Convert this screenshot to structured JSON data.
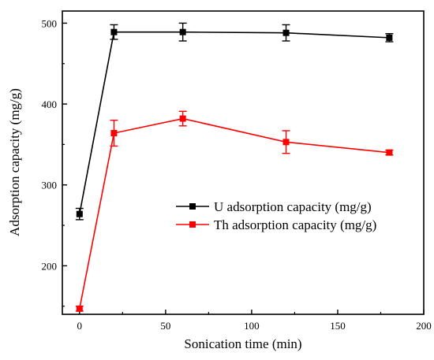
{
  "chart_data": {
    "type": "line",
    "xlabel": "Sonication time (min)",
    "ylabel": "Adsorption capacity (mg/g)",
    "xlim": [
      -10,
      200
    ],
    "ylim": [
      140,
      515
    ],
    "xticks": [
      0,
      50,
      100,
      150,
      200
    ],
    "yticks": [
      200,
      300,
      400,
      500
    ],
    "x_tick_labels": [
      "0",
      "50",
      "100",
      "150",
      "200"
    ],
    "y_tick_labels": [
      "200",
      "300",
      "400",
      "500"
    ],
    "legend_position": "center-right",
    "x": [
      0,
      20,
      60,
      120,
      180
    ],
    "series": [
      {
        "name": "U adsorption capacity (mg/g)",
        "color": "#000000",
        "marker": "square",
        "values": [
          264,
          489,
          489,
          488,
          482
        ],
        "errors": [
          7,
          9,
          11,
          10,
          5
        ]
      },
      {
        "name": "Th adsorption capacity (mg/g)",
        "color": "#ff0000",
        "marker": "square",
        "values": [
          147,
          364,
          382,
          353,
          340
        ],
        "errors": [
          3,
          16,
          9,
          14,
          3
        ]
      }
    ]
  }
}
